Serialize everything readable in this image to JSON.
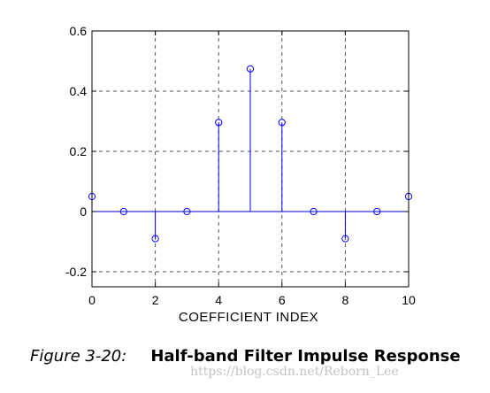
{
  "chart_data": {
    "type": "stem",
    "title": "",
    "xlabel": "COEFFICIENT INDEX",
    "ylabel": "",
    "x": [
      0,
      1,
      2,
      3,
      4,
      5,
      6,
      7,
      8,
      9,
      10
    ],
    "values": [
      0.05,
      0,
      -0.09,
      0,
      0.296,
      0.474,
      0.296,
      0,
      -0.09,
      0,
      0.05
    ],
    "xlim": [
      0,
      10
    ],
    "ylim": [
      -0.25,
      0.6
    ],
    "xticks": [
      0,
      2,
      4,
      6,
      8,
      10
    ],
    "xtick_labels": [
      "0",
      "2",
      "4",
      "6",
      "8",
      "10"
    ],
    "yticks": [
      -0.2,
      0,
      0.2,
      0.4,
      0.6
    ],
    "ytick_labels": [
      "-0.2",
      "0",
      "0.2",
      "0.4",
      "0.6"
    ],
    "grid": true,
    "series_color": "#0000ff"
  },
  "caption": {
    "number": "Figure 3-20:",
    "title": "Half-band Filter Impulse Response"
  },
  "watermark": "https://blog.csdn.net/Reborn_Lee"
}
